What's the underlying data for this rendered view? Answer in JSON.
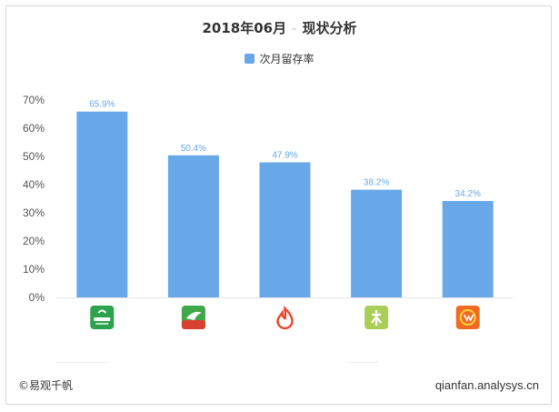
{
  "title": {
    "part1": "2018年06月",
    "sep": "-",
    "part2": "现状分析"
  },
  "legend": {
    "label": "次月留存率"
  },
  "footer": {
    "left": "©易观千帆",
    "right": "qianfan.analysys.cn"
  },
  "colors": {
    "bar": "#69a8e8",
    "label": "#69a8e8",
    "axis": "#555555"
  },
  "chart_data": {
    "type": "bar",
    "categories": [
      "app-icon-1",
      "app-icon-2",
      "app-icon-3",
      "app-icon-4",
      "app-icon-5"
    ],
    "series": [
      {
        "name": "次月留存率",
        "values": [
          65.9,
          50.4,
          47.9,
          38.2,
          34.2
        ]
      }
    ],
    "data_labels": [
      "65.9%",
      "50.4%",
      "47.9%",
      "38.2%",
      "34.2%"
    ],
    "y_ticks": [
      "0%",
      "10%",
      "20%",
      "30%",
      "40%",
      "50%",
      "60%",
      "70%"
    ],
    "ylim": [
      0,
      70
    ],
    "grid": false,
    "legend_position": "top"
  }
}
